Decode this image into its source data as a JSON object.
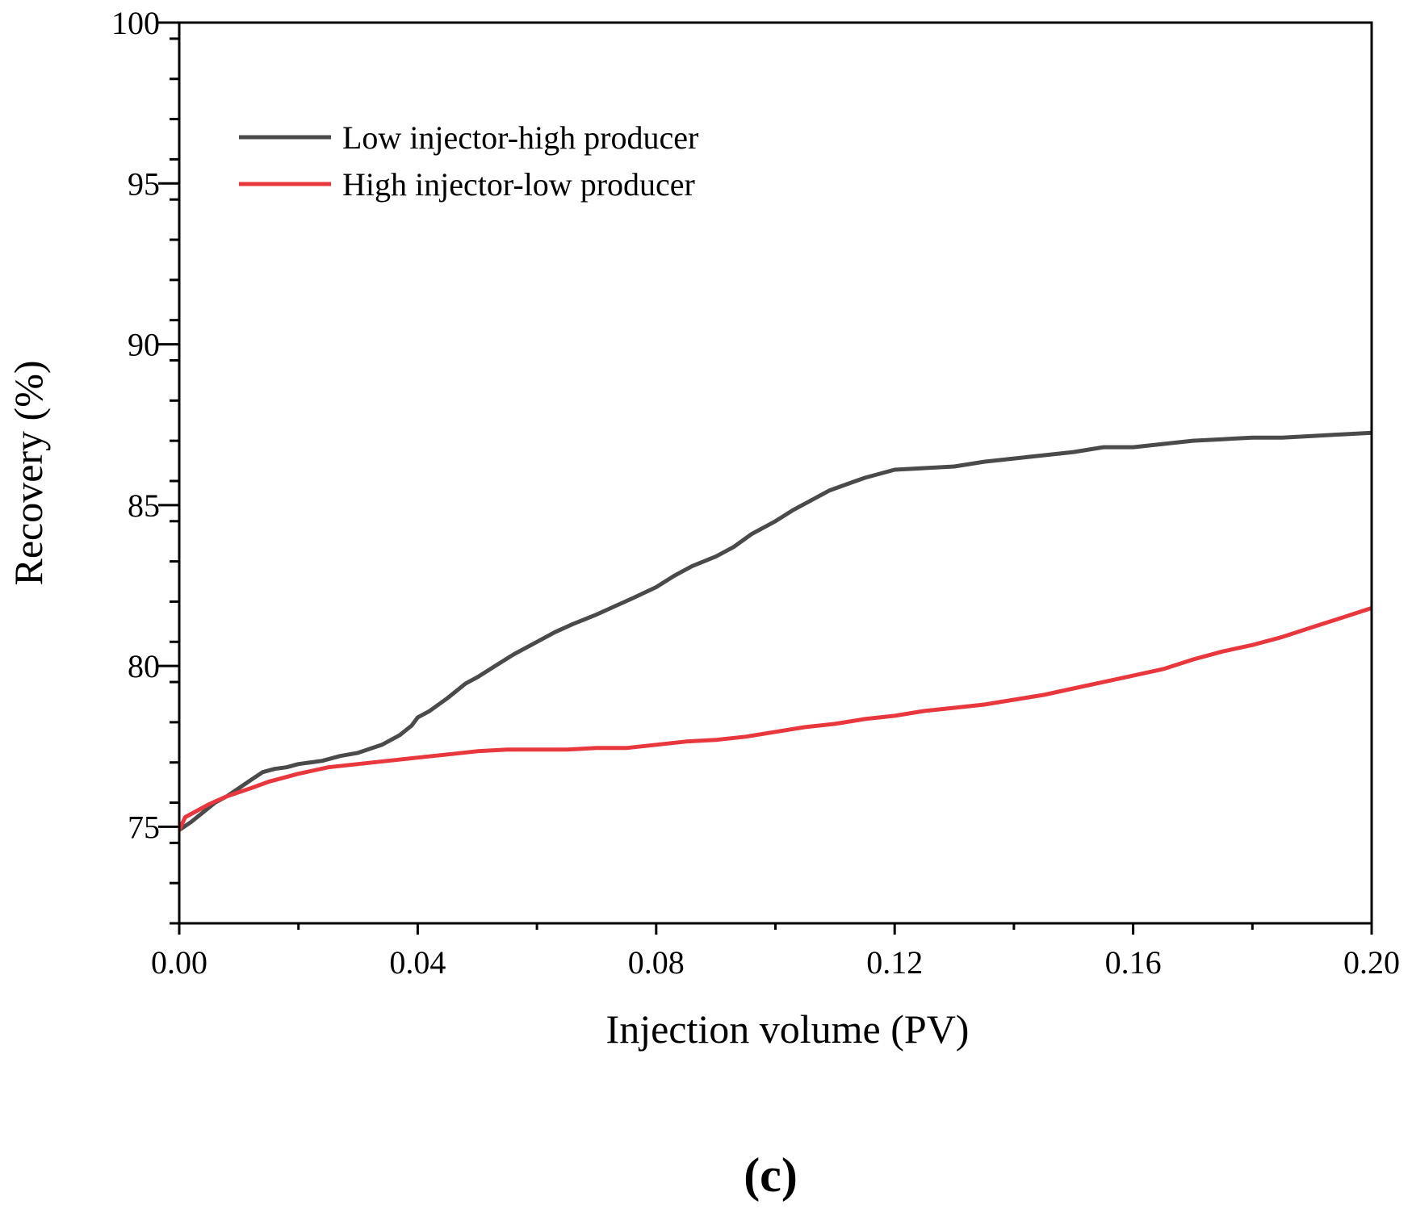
{
  "chart_data": {
    "type": "line",
    "title": "",
    "xlabel": "Injection volume (PV)",
    "ylabel": "Recovery (%)",
    "xlim": [
      0.0,
      0.2
    ],
    "ylim": [
      72.0,
      100.0
    ],
    "xticks": [
      0.0,
      0.04,
      0.08,
      0.12,
      0.16,
      0.2
    ],
    "xtick_labels": [
      "0.00",
      "0.04",
      "0.08",
      "0.12",
      "0.16",
      "0.20"
    ],
    "yticks": [
      75,
      80,
      85,
      90,
      95,
      100
    ],
    "ytick_labels": [
      "75",
      "80",
      "85",
      "90",
      "95",
      "100"
    ],
    "x_minor_step": 0.02,
    "y_minor_step": 1.25,
    "grid": false,
    "legend_position": "top-left",
    "panel_label": "(c)",
    "series": [
      {
        "name": "Low injector-high producer",
        "color": "#4a4a4a",
        "x": [
          0.0,
          0.002,
          0.004,
          0.006,
          0.008,
          0.01,
          0.012,
          0.014,
          0.016,
          0.018,
          0.02,
          0.024,
          0.027,
          0.03,
          0.034,
          0.037,
          0.039,
          0.04,
          0.042,
          0.045,
          0.048,
          0.05,
          0.053,
          0.056,
          0.06,
          0.063,
          0.066,
          0.07,
          0.073,
          0.076,
          0.08,
          0.083,
          0.086,
          0.09,
          0.093,
          0.096,
          0.1,
          0.103,
          0.106,
          0.109,
          0.112,
          0.115,
          0.118,
          0.12,
          0.125,
          0.13,
          0.135,
          0.14,
          0.145,
          0.15,
          0.155,
          0.16,
          0.165,
          0.17,
          0.175,
          0.18,
          0.185,
          0.19,
          0.195,
          0.2
        ],
        "y": [
          74.9,
          75.15,
          75.45,
          75.75,
          75.95,
          76.2,
          76.45,
          76.7,
          76.8,
          76.85,
          76.95,
          77.05,
          77.2,
          77.3,
          77.55,
          77.85,
          78.15,
          78.4,
          78.6,
          79.0,
          79.45,
          79.65,
          80.0,
          80.35,
          80.75,
          81.05,
          81.3,
          81.6,
          81.85,
          82.1,
          82.45,
          82.8,
          83.1,
          83.4,
          83.7,
          84.1,
          84.5,
          84.85,
          85.15,
          85.45,
          85.65,
          85.85,
          86.0,
          86.1,
          86.15,
          86.2,
          86.35,
          86.45,
          86.55,
          86.65,
          86.8,
          86.8,
          86.9,
          87.0,
          87.05,
          87.1,
          87.1,
          87.15,
          87.2,
          87.25
        ]
      },
      {
        "name": "High injector-low producer",
        "color": "#e8383d",
        "x": [
          0.0,
          0.001,
          0.003,
          0.005,
          0.008,
          0.012,
          0.015,
          0.018,
          0.02,
          0.025,
          0.03,
          0.035,
          0.04,
          0.045,
          0.05,
          0.055,
          0.06,
          0.065,
          0.07,
          0.075,
          0.08,
          0.085,
          0.09,
          0.095,
          0.1,
          0.105,
          0.11,
          0.115,
          0.12,
          0.125,
          0.13,
          0.135,
          0.14,
          0.145,
          0.15,
          0.155,
          0.16,
          0.165,
          0.17,
          0.175,
          0.18,
          0.185,
          0.19,
          0.195,
          0.2
        ],
        "y": [
          74.9,
          75.3,
          75.5,
          75.7,
          75.95,
          76.2,
          76.4,
          76.55,
          76.65,
          76.85,
          76.95,
          77.05,
          77.15,
          77.25,
          77.35,
          77.4,
          77.4,
          77.4,
          77.45,
          77.45,
          77.55,
          77.65,
          77.7,
          77.8,
          77.95,
          78.1,
          78.2,
          78.35,
          78.45,
          78.6,
          78.7,
          78.8,
          78.95,
          79.1,
          79.3,
          79.5,
          79.7,
          79.9,
          80.2,
          80.45,
          80.65,
          80.9,
          81.2,
          81.5,
          81.8
        ]
      }
    ]
  }
}
